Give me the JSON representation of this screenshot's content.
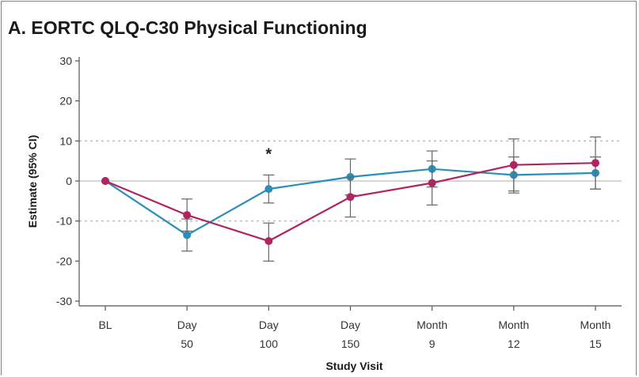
{
  "chart_data": {
    "type": "line",
    "title": "A. EORTC QLQ-C30 Physical Functioning",
    "xlabel": "Study Visit",
    "ylabel": "Estimate (95% CI)",
    "ylim": [
      -30,
      30
    ],
    "yticks": [
      "30",
      "20",
      "10",
      "0",
      "-10",
      "-20",
      "-30"
    ],
    "ytick_values": [
      30,
      20,
      10,
      0,
      -10,
      -20,
      -30
    ],
    "categories": [
      {
        "line1": "BL",
        "line2": ""
      },
      {
        "line1": "Day",
        "line2": "50"
      },
      {
        "line1": "Day",
        "line2": "100"
      },
      {
        "line1": "Day",
        "line2": "150"
      },
      {
        "line1": "Month",
        "line2": "9"
      },
      {
        "line1": "Month",
        "line2": "12"
      },
      {
        "line1": "Month",
        "line2": "15"
      }
    ],
    "reference_lines": {
      "solid": [
        0
      ],
      "dotted": [
        10,
        -10
      ]
    },
    "annotations": [
      {
        "category_index": 2,
        "text": "*",
        "y": 7
      }
    ],
    "series": [
      {
        "color": "#2a8fb6",
        "values": [
          0,
          -13.5,
          -2,
          1,
          3,
          1.5,
          2
        ],
        "ci_lower": [
          null,
          -17.5,
          -5.5,
          -3.5,
          -1.5,
          -3,
          -2
        ],
        "ci_upper": [
          null,
          -9.5,
          1.5,
          5.5,
          7.5,
          6,
          6
        ]
      },
      {
        "color": "#b0245f",
        "values": [
          0,
          -8.5,
          -15,
          -4,
          -0.5,
          4,
          4.5
        ],
        "ci_lower": [
          null,
          -12.5,
          -20,
          -9,
          -6,
          -2.5,
          -2
        ],
        "ci_upper": [
          null,
          -4.5,
          -10.5,
          1,
          5,
          10.5,
          11
        ]
      }
    ]
  }
}
